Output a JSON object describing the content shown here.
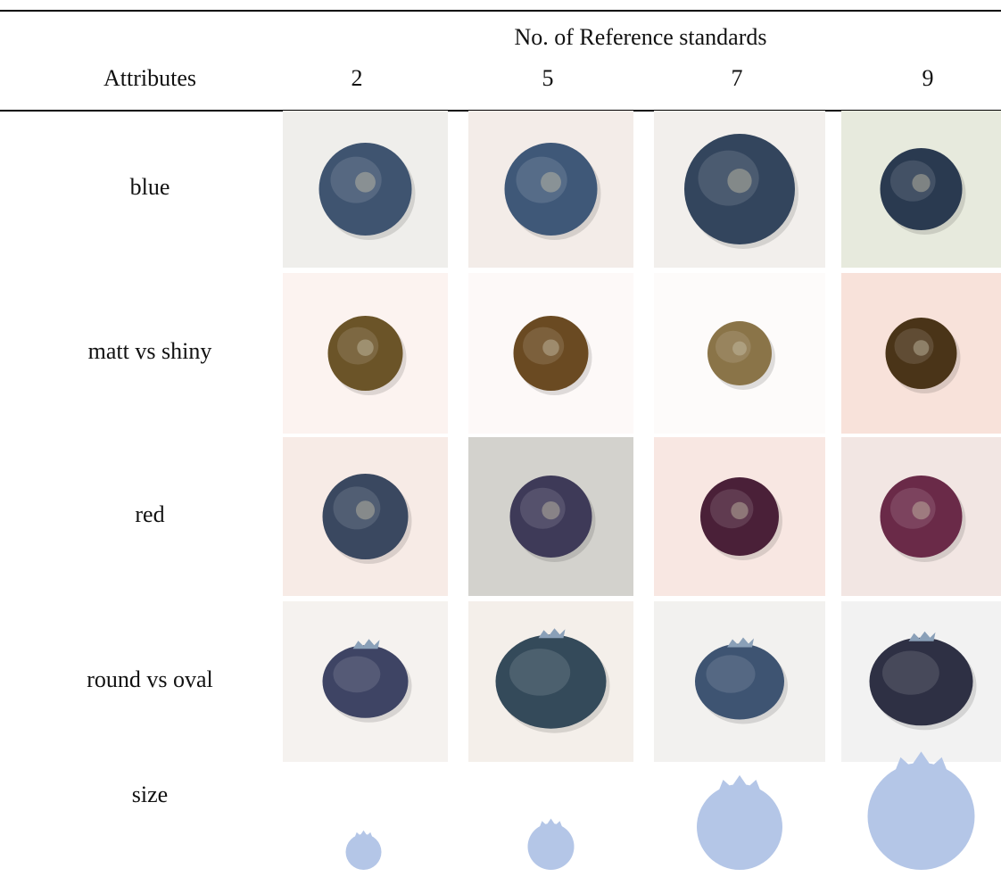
{
  "table": {
    "super_header": "No. of Reference standards",
    "header": [
      "Attributes",
      "2",
      "5",
      "7",
      "9"
    ],
    "rows": [
      "blue",
      "matt vs shiny",
      "red",
      "round vs oval",
      "size"
    ]
  }
}
